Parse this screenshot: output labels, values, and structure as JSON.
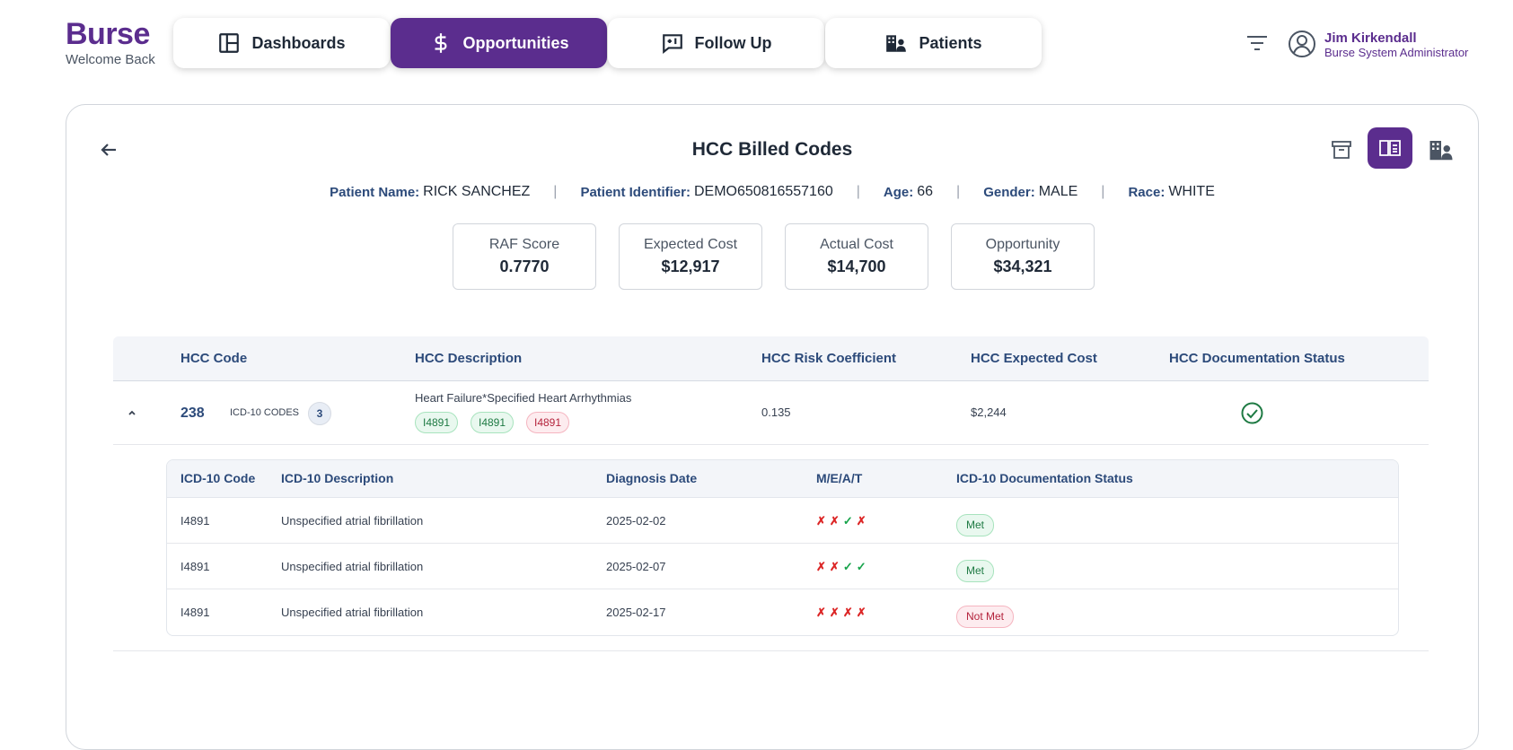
{
  "brand": {
    "name": "Burse",
    "subtitle": "Welcome Back"
  },
  "nav": {
    "tabs": [
      {
        "label": "Dashboards",
        "icon": "dashboard-icon",
        "active": false
      },
      {
        "label": "Opportunities",
        "icon": "dollar-icon",
        "active": true
      },
      {
        "label": "Follow Up",
        "icon": "follow-up-icon",
        "active": false
      },
      {
        "label": "Patients",
        "icon": "patients-icon",
        "active": false
      }
    ]
  },
  "user": {
    "name": "Jim Kirkendall",
    "role": "Burse System Administrator"
  },
  "page": {
    "title": "HCC Billed Codes"
  },
  "patient": {
    "name_label": "Patient Name:",
    "name": "RICK SANCHEZ",
    "id_label": "Patient Identifier:",
    "id": "DEMO650816557160",
    "age_label": "Age:",
    "age": "66",
    "gender_label": "Gender:",
    "gender": "MALE",
    "race_label": "Race:",
    "race": "WHITE",
    "separator": "|"
  },
  "metrics": [
    {
      "label": "RAF Score",
      "value": "0.7770"
    },
    {
      "label": "Expected Cost",
      "value": "$12,917"
    },
    {
      "label": "Actual Cost",
      "value": "$14,700"
    },
    {
      "label": "Opportunity",
      "value": "$34,321"
    }
  ],
  "hcc_table": {
    "headers": [
      "HCC Code",
      "HCC Description",
      "HCC Risk Coefficient",
      "HCC Expected Cost",
      "HCC Documentation Status"
    ],
    "row": {
      "code": "238",
      "icd_label": "ICD-10 CODES",
      "icd_count": "3",
      "description": "Heart Failure*Specified Heart Arrhythmias",
      "chips": [
        {
          "code": "I4891",
          "status": "green"
        },
        {
          "code": "I4891",
          "status": "green"
        },
        {
          "code": "I4891",
          "status": "red"
        }
      ],
      "coefficient": "0.135",
      "expected_cost": "$2,244",
      "documentation_status": "complete"
    }
  },
  "icd_table": {
    "headers": [
      "ICD-10 Code",
      "ICD-10 Description",
      "Diagnosis Date",
      "M/E/A/T",
      "ICD-10 Documentation Status"
    ],
    "rows": [
      {
        "code": "I4891",
        "description": "Unspecified atrial fibrillation",
        "date": "2025-02-02",
        "meat": [
          "✗",
          "✗",
          "✓",
          "✗"
        ],
        "status": "Met"
      },
      {
        "code": "I4891",
        "description": "Unspecified atrial fibrillation",
        "date": "2025-02-07",
        "meat": [
          "✗",
          "✗",
          "✓",
          "✓"
        ],
        "status": "Met"
      },
      {
        "code": "I4891",
        "description": "Unspecified atrial fibrillation",
        "date": "2025-02-17",
        "meat": [
          "✗",
          "✗",
          "✗",
          "✗"
        ],
        "status": "Not Met"
      }
    ]
  },
  "colors": {
    "brand": "#5b2d8e",
    "header_text": "#2c4a7a",
    "met": "#1e7a43",
    "not_met": "#b4233c"
  }
}
